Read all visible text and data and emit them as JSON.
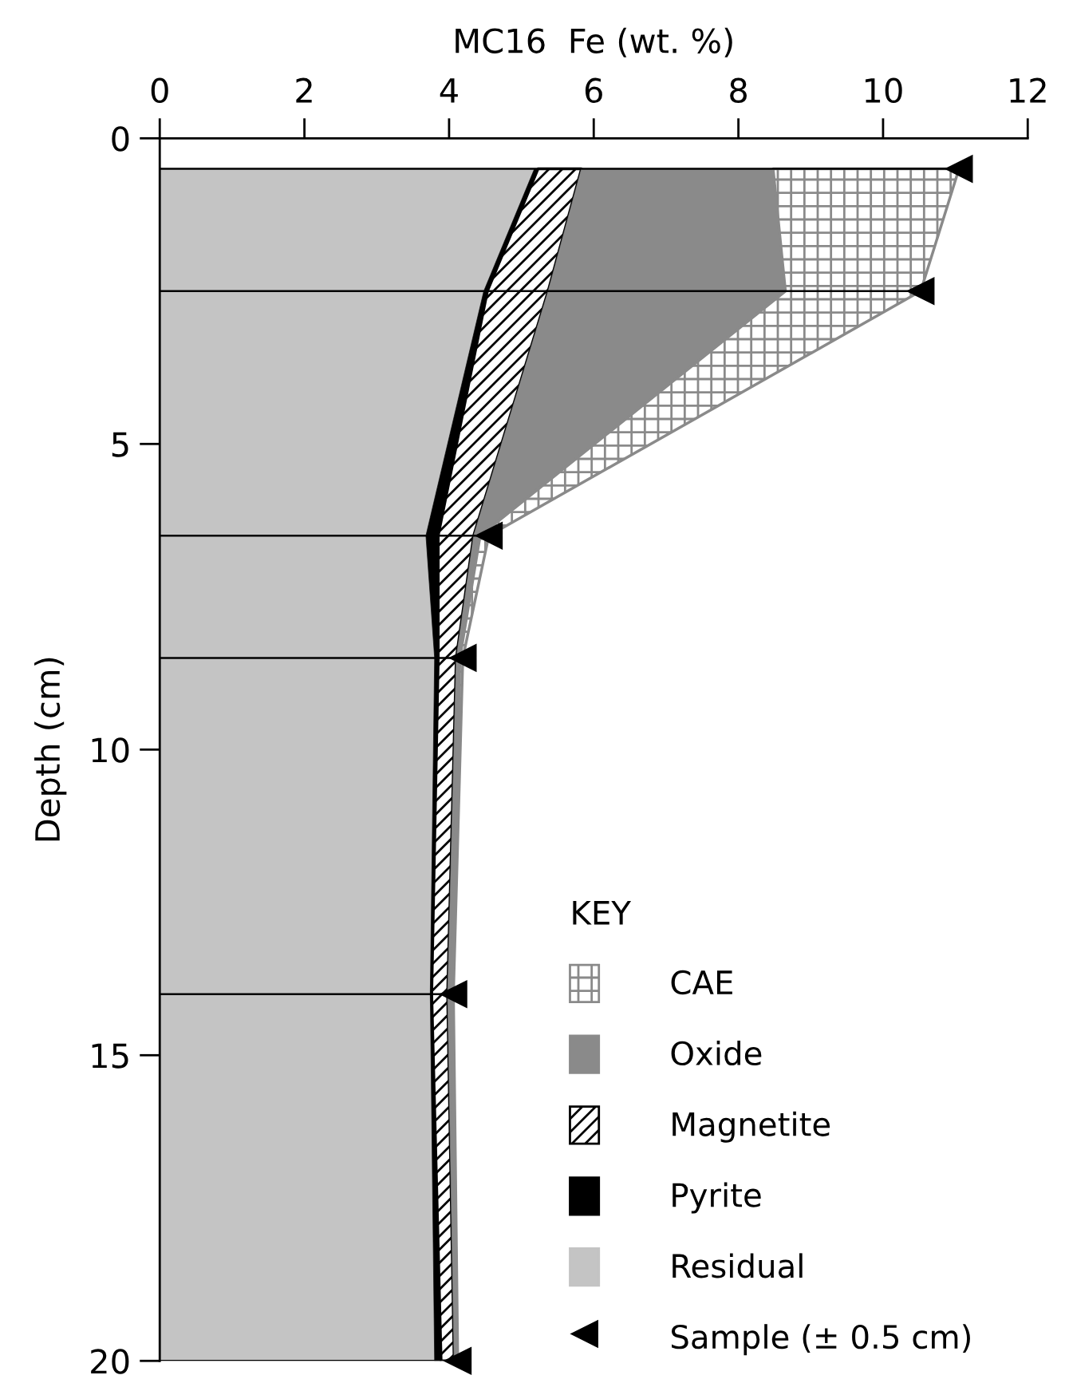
{
  "chart_data": {
    "type": "area",
    "stacked": true,
    "orientation": "horizontal",
    "xlabel": "MC16  Fe (wt. %)",
    "ylabel": "Depth (cm)",
    "legend_title": "KEY",
    "x": [
      0.5,
      2.5,
      6.5,
      8.5,
      14,
      20
    ],
    "xlim": [
      0,
      12
    ],
    "xticks": [
      0,
      2,
      4,
      6,
      8,
      10,
      12
    ],
    "ylim": [
      20,
      0
    ],
    "yticks": [
      0,
      5,
      10,
      15,
      20
    ],
    "grid": false,
    "legend": "bottom right",
    "series": [
      {
        "name": "Residual",
        "color": "#c4c4c4",
        "values": [
          5.18,
          4.48,
          3.68,
          3.8,
          3.74,
          3.8
        ]
      },
      {
        "name": "Pyrite",
        "color": "#000000",
        "values": [
          0.05,
          0.05,
          0.17,
          0.05,
          0.02,
          0.09
        ]
      },
      {
        "name": "Magnetite",
        "color": "#000000",
        "values": [
          0.6,
          0.84,
          0.49,
          0.25,
          0.22,
          0.18
        ]
      },
      {
        "name": "Oxide",
        "color": "#8a8a8a",
        "values": [
          2.65,
          3.28,
          0.09,
          0.05,
          0.05,
          0.03
        ]
      },
      {
        "name": "CAE",
        "color": "#8a8a8a",
        "values": [
          2.57,
          1.87,
          0.12,
          0.04,
          0.03,
          0.02
        ]
      },
      {
        "name": "Sample (± 0.5 cm)",
        "type": "scatter",
        "marker": "triangle",
        "color": "#000000",
        "values": [
          11.05,
          10.52,
          4.55,
          4.19,
          4.06,
          4.12
        ],
        "errors": [
          [
            0,
            11.05
          ],
          [
            0,
            10.52
          ],
          [
            0,
            4.55
          ],
          [
            0,
            4.19
          ],
          [
            0,
            4.06
          ],
          [
            0,
            4.12
          ]
        ]
      }
    ]
  }
}
